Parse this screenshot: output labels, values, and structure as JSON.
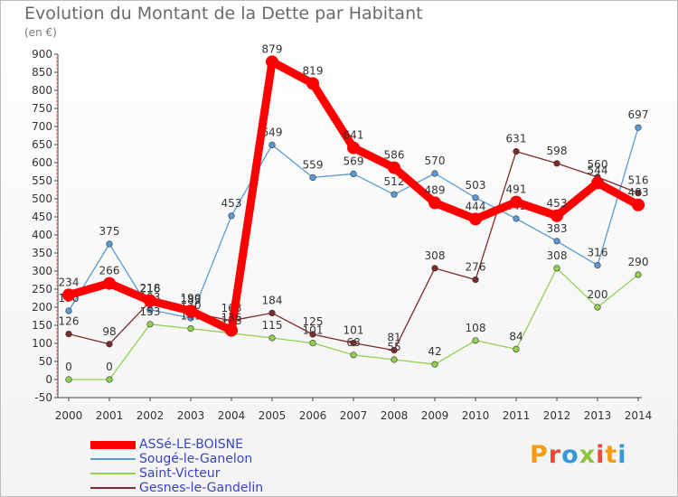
{
  "title": "Evolution du Montant de la Dette par Habitant",
  "subtitle": "(en €)",
  "logo": {
    "text": "Proxiti",
    "colors": [
      "#f39c12",
      "#e74c3c",
      "#3498db",
      "#8cc63f",
      "#e74c3c",
      "#f39c12",
      "#3498db"
    ]
  },
  "chart_data": {
    "type": "line",
    "title": "Evolution du Montant de la Dette par Habitant",
    "ylabel": "(en €)",
    "xlabel": "",
    "categories": [
      "2000",
      "2001",
      "2002",
      "2003",
      "2004",
      "2005",
      "2006",
      "2007",
      "2008",
      "2009",
      "2010",
      "2011",
      "2012",
      "2013",
      "2014"
    ],
    "ylim": [
      -50,
      900
    ],
    "yticks": [
      -50,
      0,
      50,
      100,
      150,
      200,
      250,
      300,
      350,
      400,
      450,
      500,
      550,
      600,
      650,
      700,
      750,
      800,
      850,
      900
    ],
    "grid": false,
    "legend_position": "bottom-left",
    "series": [
      {
        "name": "Sougé-le-Ganelon",
        "color": "#5b9bd5",
        "emphasis": false,
        "values": [
          190,
          375,
          193,
          170,
          453,
          649,
          559,
          569,
          512,
          570,
          503,
          445,
          383,
          316,
          697
        ]
      },
      {
        "name": "Saint-Victeur",
        "color": "#92d050",
        "emphasis": false,
        "values": [
          0,
          0,
          153,
          141,
          128,
          115,
          101,
          68,
          55,
          42,
          108,
          84,
          308,
          200,
          290
        ]
      },
      {
        "name": "Gesnes-le-Gandelin",
        "color": "#7b2c2c",
        "emphasis": false,
        "values": [
          126,
          98,
          216,
          185,
          163,
          184,
          125,
          101,
          81,
          308,
          276,
          631,
          598,
          560,
          516
        ]
      },
      {
        "name": "ASSé-LE-BOISNE",
        "color": "#ff0000",
        "emphasis": true,
        "values": [
          234,
          266,
          218,
          190,
          136,
          879,
          819,
          641,
          586,
          489,
          444,
          491,
          453,
          544,
          483
        ]
      }
    ],
    "legend_order": [
      "ASSé-LE-BOISNE",
      "Sougé-le-Ganelon",
      "Saint-Victeur",
      "Gesnes-le-Gandelin"
    ]
  }
}
